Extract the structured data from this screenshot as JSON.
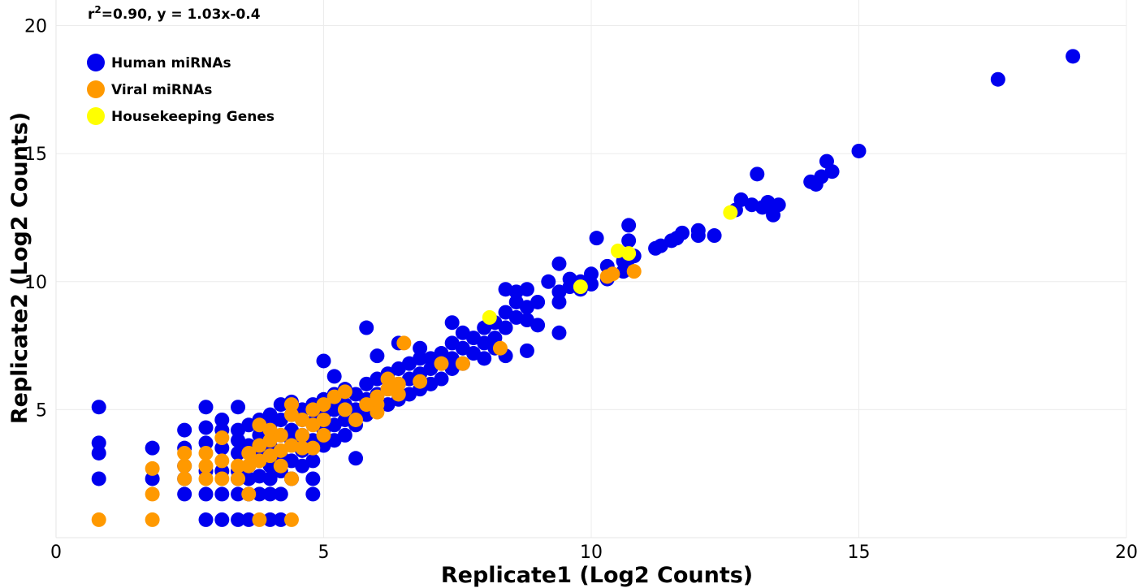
{
  "chart_data": {
    "type": "scatter",
    "title": "",
    "xlabel": "Replicate1 (Log2 Counts)",
    "ylabel": "Replicate2 (Log2 Counts)",
    "xlim": [
      0,
      20
    ],
    "ylim": [
      0,
      21
    ],
    "xticks": [
      0,
      5,
      10,
      15,
      20
    ],
    "yticks": [
      5,
      10,
      15,
      20
    ],
    "grid": true,
    "legend_position": "top-left",
    "annotation": {
      "r_base": "r",
      "r_sup": "2",
      "rest": "=0.90, y = 1.03x-0.4"
    },
    "series": [
      {
        "name": "Human miRNAs",
        "color": "#0000ee",
        "points": [
          [
            0.8,
            5.1
          ],
          [
            0.8,
            3.7
          ],
          [
            0.8,
            3.3
          ],
          [
            0.8,
            2.3
          ],
          [
            1.8,
            3.5
          ],
          [
            1.8,
            2.3
          ],
          [
            2.4,
            4.2
          ],
          [
            2.4,
            3.5
          ],
          [
            2.4,
            2.8
          ],
          [
            2.4,
            2.3
          ],
          [
            2.4,
            1.7
          ],
          [
            2.8,
            5.1
          ],
          [
            2.8,
            4.3
          ],
          [
            2.8,
            3.7
          ],
          [
            2.8,
            2.6
          ],
          [
            2.8,
            1.7
          ],
          [
            2.8,
            0.7
          ],
          [
            3.1,
            4.6
          ],
          [
            3.1,
            4.2
          ],
          [
            3.1,
            3.5
          ],
          [
            3.1,
            2.6
          ],
          [
            3.1,
            1.7
          ],
          [
            3.1,
            0.7
          ],
          [
            3.4,
            5.1
          ],
          [
            3.4,
            4.2
          ],
          [
            3.4,
            3.8
          ],
          [
            3.4,
            3.3
          ],
          [
            3.4,
            2.6
          ],
          [
            3.4,
            2.3
          ],
          [
            3.4,
            1.7
          ],
          [
            3.4,
            0.7
          ],
          [
            3.6,
            4.4
          ],
          [
            3.6,
            3.6
          ],
          [
            3.6,
            2.8
          ],
          [
            3.6,
            2.3
          ],
          [
            3.6,
            1.7
          ],
          [
            3.6,
            0.7
          ],
          [
            3.8,
            4.6
          ],
          [
            3.8,
            4.0
          ],
          [
            3.8,
            3.2
          ],
          [
            3.8,
            2.4
          ],
          [
            3.8,
            1.7
          ],
          [
            4.0,
            4.8
          ],
          [
            4.0,
            4.4
          ],
          [
            4.0,
            3.6
          ],
          [
            4.0,
            2.8
          ],
          [
            4.0,
            2.3
          ],
          [
            4.0,
            1.7
          ],
          [
            4.0,
            0.7
          ],
          [
            4.2,
            5.2
          ],
          [
            4.2,
            4.6
          ],
          [
            4.2,
            4.0
          ],
          [
            4.2,
            3.2
          ],
          [
            4.2,
            2.6
          ],
          [
            4.2,
            1.7
          ],
          [
            4.2,
            0.7
          ],
          [
            4.4,
            5.3
          ],
          [
            4.4,
            4.8
          ],
          [
            4.4,
            4.2
          ],
          [
            4.4,
            3.8
          ],
          [
            4.4,
            3.0
          ],
          [
            4.4,
            2.3
          ],
          [
            4.6,
            5.0
          ],
          [
            4.6,
            4.6
          ],
          [
            4.6,
            4.0
          ],
          [
            4.6,
            3.4
          ],
          [
            4.6,
            2.8
          ],
          [
            4.8,
            5.2
          ],
          [
            4.8,
            4.5
          ],
          [
            4.8,
            3.8
          ],
          [
            4.8,
            3.0
          ],
          [
            4.8,
            2.3
          ],
          [
            4.8,
            1.7
          ],
          [
            5.0,
            5.4
          ],
          [
            5.0,
            4.8
          ],
          [
            5.0,
            4.2
          ],
          [
            5.0,
            3.6
          ],
          [
            5.0,
            6.9
          ],
          [
            5.2,
            5.6
          ],
          [
            5.2,
            5.0
          ],
          [
            5.2,
            4.4
          ],
          [
            5.2,
            3.8
          ],
          [
            5.2,
            6.3
          ],
          [
            5.4,
            5.8
          ],
          [
            5.4,
            5.2
          ],
          [
            5.4,
            4.6
          ],
          [
            5.4,
            4.0
          ],
          [
            5.6,
            5.6
          ],
          [
            5.6,
            5.0
          ],
          [
            5.6,
            4.4
          ],
          [
            5.6,
            3.1
          ],
          [
            5.8,
            6.0
          ],
          [
            5.8,
            5.4
          ],
          [
            5.8,
            4.8
          ],
          [
            5.8,
            8.2
          ],
          [
            6.0,
            6.2
          ],
          [
            6.0,
            5.6
          ],
          [
            6.0,
            5.0
          ],
          [
            6.0,
            7.1
          ],
          [
            6.2,
            6.4
          ],
          [
            6.2,
            5.8
          ],
          [
            6.2,
            5.2
          ],
          [
            6.4,
            6.6
          ],
          [
            6.4,
            6.0
          ],
          [
            6.4,
            5.4
          ],
          [
            6.4,
            7.6
          ],
          [
            6.6,
            6.8
          ],
          [
            6.6,
            6.2
          ],
          [
            6.6,
            5.6
          ],
          [
            6.8,
            7.0
          ],
          [
            6.8,
            6.4
          ],
          [
            6.8,
            5.8
          ],
          [
            6.8,
            7.4
          ],
          [
            7.0,
            7.0
          ],
          [
            7.0,
            6.6
          ],
          [
            7.0,
            6.0
          ],
          [
            7.2,
            7.2
          ],
          [
            7.2,
            6.8
          ],
          [
            7.2,
            6.2
          ],
          [
            7.4,
            7.6
          ],
          [
            7.4,
            7.0
          ],
          [
            7.4,
            6.6
          ],
          [
            7.4,
            8.4
          ],
          [
            7.6,
            7.4
          ],
          [
            7.6,
            6.8
          ],
          [
            7.6,
            8.0
          ],
          [
            7.8,
            7.8
          ],
          [
            7.8,
            7.2
          ],
          [
            8.0,
            8.2
          ],
          [
            8.0,
            7.6
          ],
          [
            8.0,
            7.0
          ],
          [
            8.2,
            8.4
          ],
          [
            8.2,
            7.8
          ],
          [
            8.2,
            7.4
          ],
          [
            8.4,
            8.8
          ],
          [
            8.4,
            8.2
          ],
          [
            8.4,
            7.1
          ],
          [
            8.4,
            9.7
          ],
          [
            8.6,
            9.2
          ],
          [
            8.6,
            8.6
          ],
          [
            8.6,
            9.6
          ],
          [
            8.8,
            9.0
          ],
          [
            8.8,
            8.5
          ],
          [
            8.8,
            7.3
          ],
          [
            8.8,
            9.7
          ],
          [
            9.0,
            9.2
          ],
          [
            9.0,
            8.3
          ],
          [
            9.2,
            10.0
          ],
          [
            9.4,
            9.2
          ],
          [
            9.4,
            8.0
          ],
          [
            9.4,
            9.6
          ],
          [
            9.4,
            10.7
          ],
          [
            9.6,
            9.8
          ],
          [
            9.6,
            10.1
          ],
          [
            9.8,
            10.0
          ],
          [
            9.8,
            9.7
          ],
          [
            10.0,
            10.3
          ],
          [
            10.0,
            9.9
          ],
          [
            10.1,
            11.7
          ],
          [
            10.3,
            10.1
          ],
          [
            10.3,
            10.6
          ],
          [
            10.6,
            10.4
          ],
          [
            10.6,
            10.8
          ],
          [
            10.7,
            11.6
          ],
          [
            10.7,
            10.9
          ],
          [
            10.7,
            12.2
          ],
          [
            10.8,
            11.0
          ],
          [
            11.2,
            11.3
          ],
          [
            11.3,
            11.4
          ],
          [
            11.5,
            11.6
          ],
          [
            11.6,
            11.7
          ],
          [
            11.7,
            11.9
          ],
          [
            12.0,
            12.0
          ],
          [
            12.0,
            11.8
          ],
          [
            12.3,
            11.8
          ],
          [
            12.7,
            12.8
          ],
          [
            12.8,
            13.2
          ],
          [
            13.0,
            13.0
          ],
          [
            13.1,
            14.2
          ],
          [
            13.2,
            12.9
          ],
          [
            13.3,
            13.1
          ],
          [
            13.4,
            12.6
          ],
          [
            13.5,
            13.0
          ],
          [
            14.1,
            13.9
          ],
          [
            14.2,
            13.8
          ],
          [
            14.3,
            14.1
          ],
          [
            14.4,
            14.7
          ],
          [
            14.5,
            14.3
          ],
          [
            15.0,
            15.1
          ],
          [
            17.6,
            17.9
          ],
          [
            19.0,
            18.8
          ]
        ]
      },
      {
        "name": "Viral miRNAs",
        "color": "#ff9900",
        "points": [
          [
            0.8,
            0.7
          ],
          [
            1.8,
            0.7
          ],
          [
            1.8,
            1.7
          ],
          [
            1.8,
            2.7
          ],
          [
            2.4,
            2.3
          ],
          [
            2.4,
            2.8
          ],
          [
            2.4,
            3.3
          ],
          [
            2.8,
            2.3
          ],
          [
            2.8,
            2.8
          ],
          [
            2.8,
            3.3
          ],
          [
            3.1,
            2.3
          ],
          [
            3.1,
            3.0
          ],
          [
            3.1,
            3.9
          ],
          [
            3.4,
            2.3
          ],
          [
            3.4,
            2.8
          ],
          [
            3.6,
            2.8
          ],
          [
            3.6,
            3.3
          ],
          [
            3.6,
            1.7
          ],
          [
            3.8,
            3.0
          ],
          [
            3.8,
            3.6
          ],
          [
            3.8,
            4.4
          ],
          [
            3.8,
            0.7
          ],
          [
            4.0,
            3.2
          ],
          [
            4.0,
            3.8
          ],
          [
            4.0,
            4.2
          ],
          [
            4.2,
            3.4
          ],
          [
            4.2,
            4.0
          ],
          [
            4.2,
            2.8
          ],
          [
            4.4,
            3.6
          ],
          [
            4.4,
            4.8
          ],
          [
            4.4,
            5.2
          ],
          [
            4.4,
            2.3
          ],
          [
            4.4,
            0.7
          ],
          [
            4.6,
            4.0
          ],
          [
            4.6,
            4.6
          ],
          [
            4.6,
            3.5
          ],
          [
            4.8,
            4.4
          ],
          [
            4.8,
            5.0
          ],
          [
            4.8,
            3.5
          ],
          [
            5.0,
            4.6
          ],
          [
            5.0,
            5.2
          ],
          [
            5.0,
            4.0
          ],
          [
            5.2,
            5.5
          ],
          [
            5.4,
            5.0
          ],
          [
            5.4,
            5.7
          ],
          [
            5.6,
            4.6
          ],
          [
            5.8,
            5.2
          ],
          [
            6.0,
            5.5
          ],
          [
            6.0,
            5.2
          ],
          [
            6.0,
            4.9
          ],
          [
            6.2,
            5.8
          ],
          [
            6.2,
            6.2
          ],
          [
            6.4,
            5.6
          ],
          [
            6.4,
            6.0
          ],
          [
            6.5,
            7.6
          ],
          [
            6.8,
            6.1
          ],
          [
            7.2,
            6.8
          ],
          [
            7.6,
            6.8
          ],
          [
            8.3,
            7.4
          ],
          [
            10.3,
            10.2
          ],
          [
            10.4,
            10.3
          ],
          [
            10.8,
            10.4
          ]
        ]
      },
      {
        "name": "Housekeeping Genes",
        "color": "#ffff00",
        "points": [
          [
            8.1,
            8.6
          ],
          [
            9.8,
            9.8
          ],
          [
            10.5,
            11.2
          ],
          [
            10.7,
            11.1
          ],
          [
            12.6,
            12.7
          ]
        ]
      }
    ]
  }
}
